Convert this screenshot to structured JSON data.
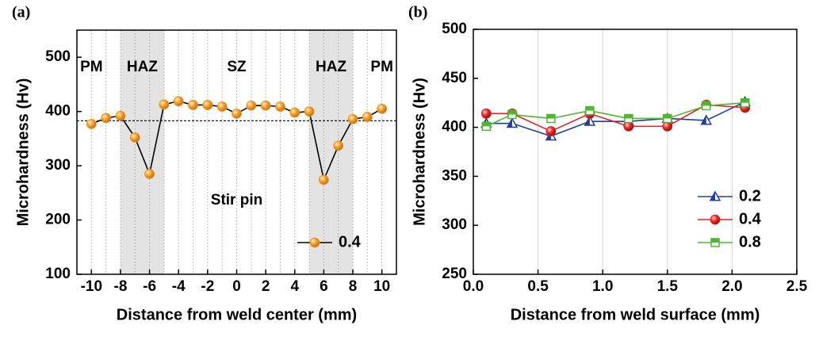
{
  "chart_data": [
    {
      "type": "line",
      "panel_label": "(a)",
      "x_label": "Distance from weld center (mm)",
      "y_label": "Microhardness (Hv)",
      "xlim": [
        -11,
        11
      ],
      "xticks": [
        -10,
        -8,
        -6,
        -4,
        -2,
        0,
        2,
        4,
        6,
        8,
        10
      ],
      "ylim": [
        100,
        550
      ],
      "yticks": [
        100,
        200,
        300,
        400,
        500
      ],
      "x": [
        -10,
        -9,
        -8,
        -7,
        -6,
        -5,
        -4,
        -3,
        -2,
        -1,
        0,
        1,
        2,
        3,
        4,
        5,
        6,
        7,
        8,
        9,
        10
      ],
      "series": [
        {
          "name": "0.4",
          "color": "#f0901e",
          "line_color": "#000000",
          "marker": "circle",
          "values": [
            377,
            388,
            392,
            352,
            285,
            413,
            419,
            412,
            412,
            409,
            396,
            411,
            411,
            409,
            398,
            400,
            274,
            337,
            386,
            390,
            405
          ]
        }
      ],
      "reference_line": 383,
      "shaded_regions": [
        [
          -8,
          -5
        ],
        [
          5,
          8
        ]
      ],
      "x_grid": "dotted",
      "annotations": [
        {
          "text": "PM",
          "x": -10,
          "y": 481
        },
        {
          "text": "HAZ",
          "x": -6.5,
          "y": 481
        },
        {
          "text": "SZ",
          "x": 0,
          "y": 481
        },
        {
          "text": "HAZ",
          "x": 6.5,
          "y": 481
        },
        {
          "text": "PM",
          "x": 10,
          "y": 481
        },
        {
          "text": "Stir pin",
          "x": 0,
          "y": 236
        }
      ],
      "legend": "lower right"
    },
    {
      "type": "line",
      "panel_label": "(b)",
      "x_label": "Distance from weld surface (mm)",
      "y_label": "Microhardness (Hv)",
      "xlim": [
        0,
        2.5
      ],
      "xticks": [
        {
          "value": 0,
          "label": "0.0"
        },
        0.5,
        {
          "value": 1,
          "label": "1.0"
        },
        1.5,
        {
          "value": 2,
          "label": "2.0"
        },
        2.5
      ],
      "ylim": [
        250,
        500
      ],
      "yticks": [
        250,
        300,
        350,
        400,
        450,
        500
      ],
      "x": [
        0.1,
        0.3,
        0.6,
        0.9,
        1.2,
        1.5,
        1.8,
        2.1
      ],
      "series": [
        {
          "name": "0.2",
          "color": "#1f3f9e",
          "line_color": "#1f3f9e",
          "marker": "triangle",
          "values": [
            404,
            404,
            391,
            406,
            406,
            409,
            407,
            426
          ]
        },
        {
          "name": "0.4",
          "color": "#e02020",
          "line_color": "#e02020",
          "marker": "circle",
          "values": [
            414,
            414,
            396,
            414,
            401,
            401,
            423,
            420
          ]
        },
        {
          "name": "0.8",
          "color": "#4cb82e",
          "line_color": "#4cb82e",
          "marker": "square",
          "values": [
            401,
            413,
            409,
            417,
            409,
            409,
            422,
            425
          ]
        }
      ],
      "x_grid": "solid",
      "legend": "lower right"
    }
  ]
}
